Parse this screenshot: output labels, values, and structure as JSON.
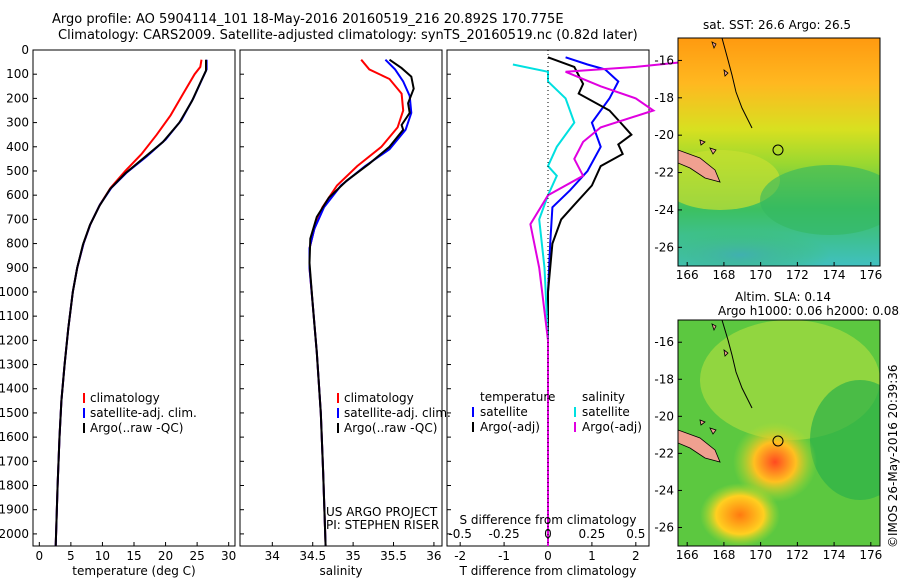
{
  "header": {
    "line1": "Argo profile: AO 5904114_101 18-May-2016 20160519_216 20.892S 170.775E",
    "line2": "Climatology: CARS2009. Satellite-adjusted climatology: synTS_20160519.nc (0.82d later)"
  },
  "colors": {
    "climatology": "#ff0000",
    "satellite": "#0000ff",
    "argo": "#000000",
    "salinity_sat": "#00e0e0",
    "salinity_argo": "#e000e0"
  },
  "chart_data": [
    {
      "type": "line",
      "xlabel": "temperature (deg C)",
      "ylabel": "",
      "xlim": [
        -1,
        31
      ],
      "ylim": [
        2050,
        0
      ],
      "x_ticks": [
        "0",
        "5",
        "10",
        "15",
        "20",
        "25",
        "30"
      ],
      "y_ticks": [
        "0",
        "100",
        "200",
        "300",
        "400",
        "500",
        "600",
        "700",
        "800",
        "900",
        "1000",
        "1100",
        "1200",
        "1300",
        "1400",
        "1500",
        "1600",
        "1700",
        "1800",
        "1900",
        "2000"
      ],
      "legend": [
        "climatology",
        "satellite-adj. clim.",
        "Argo(..raw -QC)"
      ],
      "series": [
        {
          "name": "climatology",
          "color": "#ff0000",
          "points": [
            [
              25.7,
              40
            ],
            [
              25.5,
              70
            ],
            [
              24.6,
              100
            ],
            [
              22.8,
              180
            ],
            [
              20.8,
              270
            ],
            [
              18.6,
              350
            ],
            [
              16.2,
              430
            ],
            [
              13.6,
              500
            ],
            [
              11.3,
              570
            ],
            [
              9.6,
              640
            ],
            [
              8.1,
              720
            ],
            [
              7.0,
              800
            ],
            [
              6.0,
              900
            ],
            [
              5.3,
              1000
            ],
            [
              4.6,
              1150
            ],
            [
              4.0,
              1300
            ],
            [
              3.5,
              1450
            ],
            [
              3.2,
              1600
            ],
            [
              2.9,
              1800
            ],
            [
              2.6,
              2050
            ]
          ]
        },
        {
          "name": "satellite-adj. clim.",
          "color": "#0000ff",
          "points": [
            [
              26.5,
              40
            ],
            [
              26.5,
              80
            ],
            [
              25.8,
              120
            ],
            [
              24.4,
              200
            ],
            [
              22.5,
              290
            ],
            [
              20.0,
              370
            ],
            [
              17.0,
              440
            ],
            [
              13.9,
              505
            ],
            [
              11.4,
              570
            ],
            [
              9.6,
              640
            ],
            [
              8.1,
              720
            ],
            [
              7.0,
              800
            ],
            [
              6.0,
              900
            ],
            [
              5.3,
              1000
            ],
            [
              4.6,
              1150
            ],
            [
              4.0,
              1300
            ],
            [
              3.5,
              1450
            ],
            [
              3.2,
              1600
            ],
            [
              2.9,
              1800
            ],
            [
              2.6,
              2050
            ]
          ]
        },
        {
          "name": "Argo(..raw -QC)",
          "color": "#000000",
          "points": [
            [
              26.4,
              40
            ],
            [
              26.4,
              85
            ],
            [
              25.6,
              130
            ],
            [
              24.2,
              210
            ],
            [
              22.2,
              300
            ],
            [
              19.6,
              380
            ],
            [
              16.6,
              445
            ],
            [
              13.6,
              510
            ],
            [
              11.2,
              575
            ],
            [
              9.5,
              645
            ],
            [
              8.0,
              725
            ],
            [
              6.9,
              805
            ],
            [
              6.0,
              900
            ],
            [
              5.3,
              1000
            ],
            [
              4.6,
              1150
            ],
            [
              4.0,
              1300
            ],
            [
              3.5,
              1450
            ],
            [
              3.2,
              1600
            ],
            [
              2.9,
              1800
            ],
            [
              2.6,
              2050
            ]
          ]
        }
      ]
    },
    {
      "type": "line",
      "xlabel": "salinity",
      "xlim": [
        33.6,
        36.1
      ],
      "ylim": [
        2050,
        0
      ],
      "x_ticks": [
        "34",
        "34.5",
        "35",
        "35.5",
        "36"
      ],
      "legend": [
        "climatology",
        "satellite-adj. clim.",
        "Argo(..raw -QC)"
      ],
      "annotation": [
        "US ARGO PROJECT",
        "PI: STEPHEN RISER"
      ],
      "series": [
        {
          "name": "climatology",
          "color": "#ff0000",
          "points": [
            [
              35.1,
              40
            ],
            [
              35.2,
              80
            ],
            [
              35.45,
              120
            ],
            [
              35.6,
              180
            ],
            [
              35.62,
              250
            ],
            [
              35.55,
              320
            ],
            [
              35.35,
              400
            ],
            [
              35.05,
              480
            ],
            [
              34.8,
              560
            ],
            [
              34.62,
              650
            ],
            [
              34.52,
              740
            ],
            [
              34.46,
              820
            ],
            [
              34.46,
              900
            ],
            [
              34.5,
              1050
            ],
            [
              34.55,
              1250
            ],
            [
              34.6,
              1500
            ],
            [
              34.63,
              1750
            ],
            [
              34.66,
              2050
            ]
          ]
        },
        {
          "name": "satellite-adj. clim.",
          "color": "#0000ff",
          "points": [
            [
              35.4,
              40
            ],
            [
              35.52,
              80
            ],
            [
              35.62,
              130
            ],
            [
              35.7,
              190
            ],
            [
              35.72,
              260
            ],
            [
              35.65,
              330
            ],
            [
              35.45,
              410
            ],
            [
              35.15,
              480
            ],
            [
              34.85,
              560
            ],
            [
              34.64,
              650
            ],
            [
              34.52,
              740
            ],
            [
              34.46,
              820
            ],
            [
              34.46,
              900
            ],
            [
              34.5,
              1050
            ],
            [
              34.55,
              1250
            ],
            [
              34.6,
              1500
            ],
            [
              34.63,
              1750
            ],
            [
              34.66,
              2050
            ]
          ]
        },
        {
          "name": "Argo(..raw -QC)",
          "color": "#000000",
          "points": [
            [
              35.45,
              40
            ],
            [
              35.6,
              75
            ],
            [
              35.72,
              110
            ],
            [
              35.75,
              160
            ],
            [
              35.68,
              220
            ],
            [
              35.7,
              260
            ],
            [
              35.6,
              310
            ],
            [
              35.62,
              330
            ],
            [
              35.45,
              400
            ],
            [
              35.2,
              470
            ],
            [
              34.92,
              540
            ],
            [
              34.7,
              610
            ],
            [
              34.55,
              690
            ],
            [
              34.47,
              780
            ],
            [
              34.46,
              880
            ],
            [
              34.5,
              1050
            ],
            [
              34.55,
              1250
            ],
            [
              34.6,
              1500
            ],
            [
              34.63,
              1750
            ],
            [
              34.66,
              2050
            ]
          ]
        }
      ]
    },
    {
      "type": "line",
      "xlabel": "T difference from climatology",
      "x_ticks": [
        "-2",
        "-1",
        "0",
        "1",
        "2"
      ],
      "xlim": [
        -2.3,
        2.3
      ],
      "secondary_xlabel": "S difference from climatology",
      "secondary_x_ticks": [
        "-0.5",
        "-0.25",
        "0",
        "0.25",
        "0.5"
      ],
      "ylim": [
        2050,
        0
      ],
      "legend": {
        "temperature": [
          "satellite",
          "Argo(-adj)"
        ],
        "salinity": [
          "satellite",
          "Argo(-adj)"
        ],
        "temperature_title": "temperature",
        "salinity_title": "salinity"
      },
      "series": [
        {
          "name": "satellite",
          "group": "temperature",
          "color": "#0000ff",
          "points": [
            [
              0.4,
              30
            ],
            [
              0.9,
              60
            ],
            [
              1.3,
              80
            ],
            [
              1.6,
              130
            ],
            [
              1.4,
              200
            ],
            [
              1.0,
              300
            ],
            [
              1.2,
              400
            ],
            [
              0.9,
              500
            ],
            [
              0.5,
              580
            ],
            [
              0.1,
              650
            ],
            [
              0.05,
              800
            ],
            [
              0.0,
              1000
            ],
            [
              0.0,
              1400
            ],
            [
              0.0,
              2050
            ]
          ]
        },
        {
          "name": "Argo(-adj)",
          "group": "temperature",
          "color": "#000000",
          "points": [
            [
              0.0,
              30
            ],
            [
              0.6,
              70
            ],
            [
              0.8,
              140
            ],
            [
              0.7,
              180
            ],
            [
              1.4,
              250
            ],
            [
              1.7,
              310
            ],
            [
              1.9,
              350
            ],
            [
              1.6,
              390
            ],
            [
              1.7,
              430
            ],
            [
              1.2,
              480
            ],
            [
              1.0,
              560
            ],
            [
              0.6,
              640
            ],
            [
              0.3,
              700
            ],
            [
              0.1,
              800
            ],
            [
              0.0,
              1000
            ],
            [
              0.0,
              1400
            ],
            [
              0.0,
              2050
            ]
          ]
        },
        {
          "name": "satellite",
          "group": "salinity",
          "color": "#00e0e0",
          "points": [
            [
              -0.2,
              60
            ],
            [
              0.0,
              90
            ],
            [
              0.0,
              130
            ],
            [
              0.1,
              200
            ],
            [
              0.15,
              300
            ],
            [
              0.05,
              400
            ],
            [
              0.0,
              480
            ],
            [
              0.05,
              520
            ],
            [
              0.0,
              600
            ],
            [
              -0.05,
              700
            ],
            [
              -0.02,
              900
            ],
            [
              0.0,
              1200
            ],
            [
              0.0,
              2050
            ]
          ]
        },
        {
          "name": "Argo(-adj)",
          "group": "salinity",
          "color": "#e000e0",
          "points": [
            [
              0.9,
              40
            ],
            [
              0.5,
              70
            ],
            [
              0.1,
              90
            ],
            [
              0.3,
              150
            ],
            [
              0.5,
              200
            ],
            [
              0.6,
              250
            ],
            [
              0.3,
              320
            ],
            [
              0.2,
              380
            ],
            [
              0.15,
              450
            ],
            [
              0.2,
              520
            ],
            [
              0.0,
              600
            ],
            [
              -0.1,
              720
            ],
            [
              -0.05,
              900
            ],
            [
              0.0,
              1200
            ],
            [
              0.0,
              2050
            ]
          ]
        }
      ]
    },
    {
      "type": "heatmap",
      "title": "sat. SST: 26.6  Argo: 26.5",
      "x_ticks": [
        "166",
        "168",
        "170",
        "172",
        "174",
        "176"
      ],
      "y_ticks": [
        "-16",
        "-18",
        "-20",
        "-22",
        "-24",
        "-26"
      ],
      "xlim": [
        165.5,
        176.5
      ],
      "ylim": [
        -27,
        -14.8
      ]
    },
    {
      "type": "heatmap",
      "title": "Altim. SLA: 0.14",
      "subtitle": "Argo h1000: 0.06 h2000: 0.083",
      "x_ticks": [
        "166",
        "168",
        "170",
        "172",
        "174",
        "176"
      ],
      "y_ticks": [
        "-16",
        "-18",
        "-20",
        "-22",
        "-24",
        "-26"
      ],
      "xlim": [
        165.5,
        176.5
      ],
      "ylim": [
        -27,
        -14.8
      ]
    }
  ],
  "footer": {
    "stamp": "©IMOS 26-May-2016 20:39:36"
  }
}
